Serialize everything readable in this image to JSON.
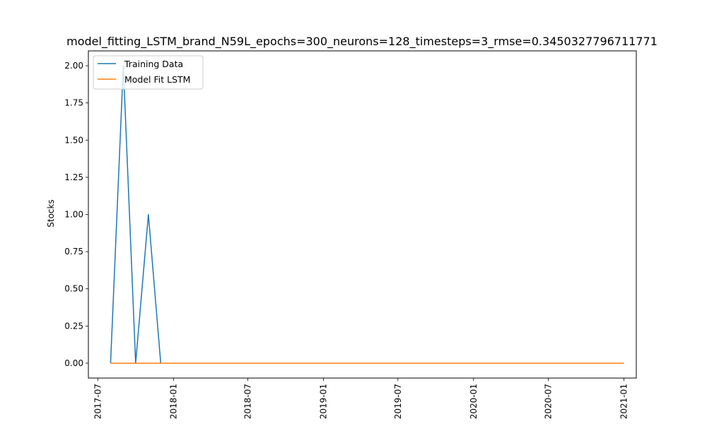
{
  "chart_data": {
    "type": "line",
    "title": "model_fitting_LSTM_brand_N59L_epochs=300_neurons=128_timesteps=3_rmse=0.3450327796711771",
    "xlabel": "",
    "ylabel": "Stocks",
    "xlim": [
      "2017-06-08",
      "2021-01-31"
    ],
    "ylim": [
      -0.1,
      2.1
    ],
    "x_ticks": [
      "2017-07",
      "2018-01",
      "2018-07",
      "2019-01",
      "2019-07",
      "2020-01",
      "2020-07",
      "2021-01"
    ],
    "y_ticks": [
      "0.00",
      "0.25",
      "0.50",
      "0.75",
      "1.00",
      "1.25",
      "1.50",
      "1.75",
      "2.00"
    ],
    "grid": false,
    "legend_position": "top-left",
    "series": [
      {
        "name": "Training Data",
        "color": "#1f77b4",
        "x": [
          "2017-08-01",
          "2017-09-01",
          "2017-10-01",
          "2017-11-01",
          "2017-12-01"
        ],
        "y": [
          0,
          2,
          0,
          1,
          0
        ]
      },
      {
        "name": "Model Fit LSTM",
        "color": "#ff7f0e",
        "x": [
          "2017-08-01",
          "2021-01-01"
        ],
        "y": [
          0,
          0
        ]
      }
    ]
  }
}
